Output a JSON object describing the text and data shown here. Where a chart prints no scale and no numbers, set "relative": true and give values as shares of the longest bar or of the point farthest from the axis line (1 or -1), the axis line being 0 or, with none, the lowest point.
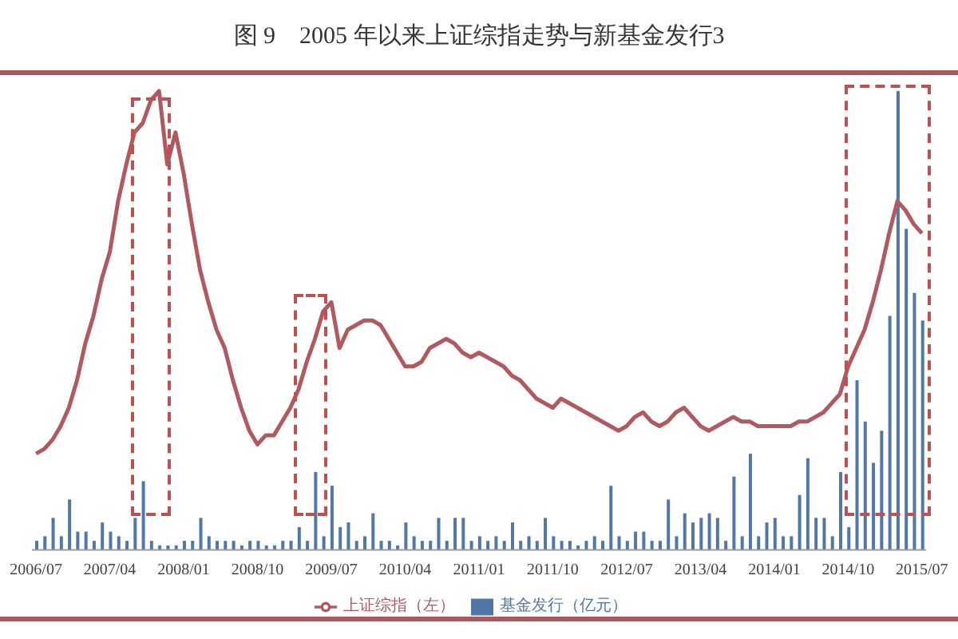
{
  "chart_data": {
    "type": "bar",
    "title": "图 9　2005 年以来上证综指走势与新基金发行3",
    "relative": true,
    "legend": "bottom",
    "categories": [
      "2006/07",
      null,
      null,
      null,
      null,
      null,
      null,
      null,
      null,
      "2007/04",
      null,
      null,
      null,
      null,
      null,
      null,
      null,
      null,
      "2008/01",
      null,
      null,
      null,
      null,
      null,
      null,
      null,
      null,
      "2008/10",
      null,
      null,
      null,
      null,
      null,
      null,
      null,
      null,
      "2009/07",
      null,
      null,
      null,
      null,
      null,
      null,
      null,
      null,
      "2010/04",
      null,
      null,
      null,
      null,
      null,
      null,
      null,
      null,
      "2011/01",
      null,
      null,
      null,
      null,
      null,
      null,
      null,
      null,
      "2011/10",
      null,
      null,
      null,
      null,
      null,
      null,
      null,
      null,
      "2012/07",
      null,
      null,
      null,
      null,
      null,
      null,
      null,
      null,
      "2013/04",
      null,
      null,
      null,
      null,
      null,
      null,
      null,
      null,
      "2014/01",
      null,
      null,
      null,
      null,
      null,
      null,
      null,
      null,
      "2014/10",
      null,
      null,
      null,
      null,
      null,
      null,
      null,
      null,
      "2015/07"
    ],
    "series": [
      {
        "name": "基金发行（亿元）",
        "color": "#4f77a8",
        "values": [
          0.02,
          0.03,
          0.07,
          0.03,
          0.11,
          0.04,
          0.04,
          0.02,
          0.06,
          0.04,
          0.03,
          0.02,
          0.07,
          0.15,
          0.02,
          0.01,
          0.01,
          0.01,
          0.02,
          0.02,
          0.07,
          0.03,
          0.02,
          0.02,
          0.02,
          0.01,
          0.02,
          0.02,
          0.01,
          0.01,
          0.02,
          0.02,
          0.05,
          0.02,
          0.17,
          0.03,
          0.14,
          0.05,
          0.06,
          0.02,
          0.03,
          0.08,
          0.02,
          0.02,
          0.01,
          0.06,
          0.03,
          0.02,
          0.02,
          0.07,
          0.02,
          0.07,
          0.07,
          0.02,
          0.03,
          0.02,
          0.03,
          0.02,
          0.06,
          0.02,
          0.03,
          0.02,
          0.07,
          0.03,
          0.02,
          0.02,
          0.01,
          0.02,
          0.03,
          0.02,
          0.14,
          0.03,
          0.02,
          0.04,
          0.04,
          0.02,
          0.02,
          0.11,
          0.03,
          0.08,
          0.06,
          0.07,
          0.08,
          0.07,
          0.02,
          0.16,
          0.03,
          0.21,
          0.03,
          0.06,
          0.07,
          0.03,
          0.03,
          0.12,
          0.2,
          0.07,
          0.07,
          0.03,
          0.17,
          0.05,
          0.37,
          0.28,
          0.19,
          0.26,
          0.51,
          1,
          0.7,
          0.56,
          0.5
        ]
      },
      {
        "name": "上证综指（左）",
        "type": "line",
        "color": "#b05a5f",
        "values": [
          0.21,
          0.22,
          0.24,
          0.27,
          0.31,
          0.37,
          0.45,
          0.51,
          0.59,
          0.65,
          0.76,
          0.84,
          0.91,
          0.93,
          0.98,
          1,
          0.84,
          0.91,
          0.82,
          0.71,
          0.61,
          0.54,
          0.48,
          0.44,
          0.37,
          0.31,
          0.26,
          0.23,
          0.25,
          0.25,
          0.28,
          0.31,
          0.35,
          0.41,
          0.46,
          0.52,
          0.54,
          0.44,
          0.48,
          0.49,
          0.5,
          0.5,
          0.49,
          0.46,
          0.43,
          0.4,
          0.4,
          0.41,
          0.44,
          0.45,
          0.46,
          0.45,
          0.43,
          0.42,
          0.43,
          0.42,
          0.41,
          0.4,
          0.38,
          0.37,
          0.35,
          0.33,
          0.32,
          0.31,
          0.33,
          0.32,
          0.31,
          0.3,
          0.29,
          0.28,
          0.27,
          0.26,
          0.27,
          0.29,
          0.3,
          0.28,
          0.27,
          0.28,
          0.3,
          0.31,
          0.29,
          0.27,
          0.26,
          0.27,
          0.28,
          0.29,
          0.28,
          0.28,
          0.27,
          0.27,
          0.27,
          0.27,
          0.27,
          0.28,
          0.28,
          0.29,
          0.3,
          0.32,
          0.34,
          0.4,
          0.44,
          0.48,
          0.54,
          0.61,
          0.69,
          0.76,
          0.74,
          0.71,
          0.69
        ]
      }
    ]
  }
}
